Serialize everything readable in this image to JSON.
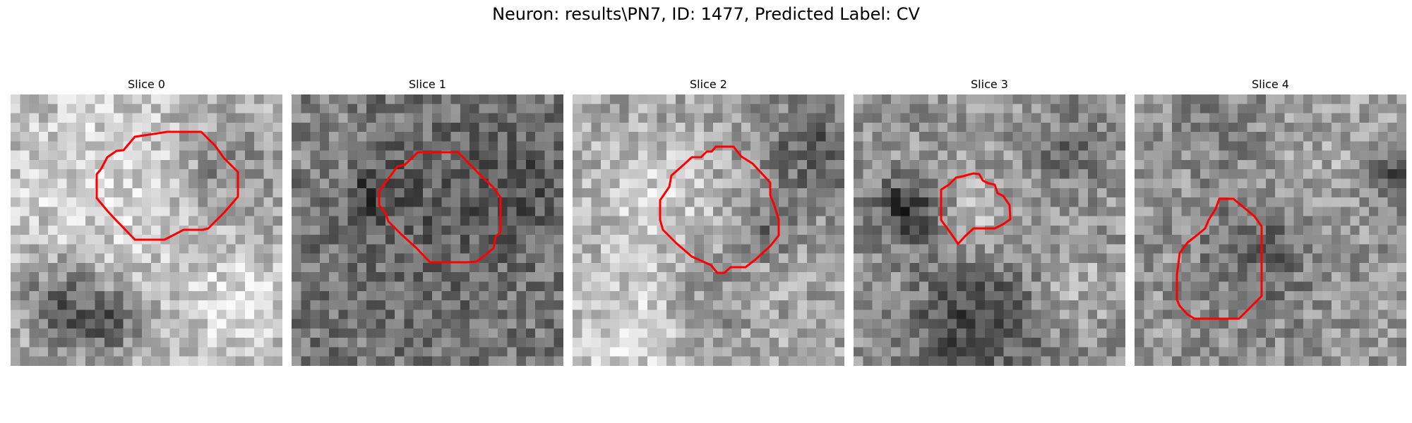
{
  "figure_title": "Neuron: results\\PN7, ID: 1477, Predicted Label: CV",
  "contour_color": "#ff0000",
  "colormap": "grayscale",
  "panels": [
    {
      "title": "Slice 0"
    },
    {
      "title": "Slice 1"
    },
    {
      "title": "Slice 2"
    },
    {
      "title": "Slice 3"
    },
    {
      "title": "Slice 4"
    }
  ]
}
